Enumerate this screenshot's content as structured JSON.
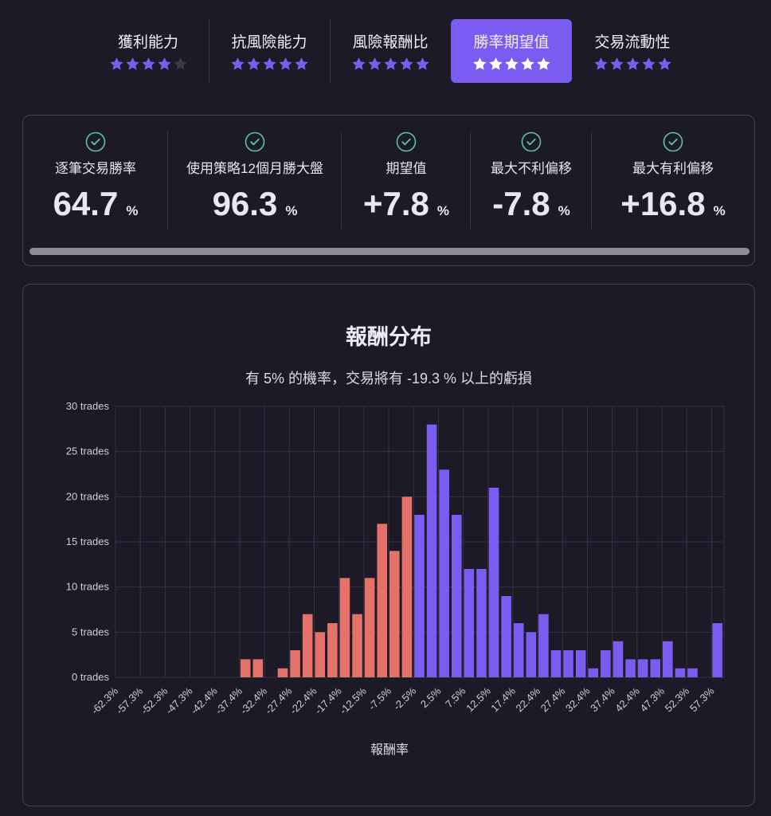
{
  "tabs": [
    {
      "label": "獲利能力",
      "stars": 4,
      "active": false
    },
    {
      "label": "抗風險能力",
      "stars": 5,
      "active": false
    },
    {
      "label": "風險報酬比",
      "stars": 5,
      "active": false
    },
    {
      "label": "勝率期望值",
      "stars": 5,
      "active": true
    },
    {
      "label": "交易流動性",
      "stars": 5,
      "active": false
    }
  ],
  "stats": [
    {
      "label": "逐筆交易勝率",
      "value": "64.7",
      "unit": "%"
    },
    {
      "label": "使用策略12個月勝大盤",
      "value": "96.3",
      "unit": "%"
    },
    {
      "label": "期望值",
      "value": "+7.8",
      "unit": "%"
    },
    {
      "label": "最大不利偏移",
      "value": "-7.8",
      "unit": "%"
    },
    {
      "label": "最大有利偏移",
      "value": "+16.8",
      "unit": "%"
    }
  ],
  "colors": {
    "accent": "#7b5cf0",
    "loss": "#e5726a",
    "check": "#59c5a8"
  },
  "chart_data": {
    "type": "bar",
    "title": "報酬分布",
    "subtitle": "有 5% 的機率，交易將有 -19.3 % 以上的虧損",
    "xlabel": "報酬率",
    "ylabel": "",
    "ylim": [
      0,
      30
    ],
    "y_ticks": [
      "0 trades",
      "5 trades",
      "10 trades",
      "15 trades",
      "20 trades",
      "25 trades",
      "30 trades"
    ],
    "x_tick_labels": [
      "-62.3%",
      "-57.3%",
      "-52.3%",
      "-47.3%",
      "-42.4%",
      "-37.4%",
      "-32.4%",
      "-27.4%",
      "-22.4%",
      "-17.4%",
      "-12.5%",
      "-7.5%",
      "-2.5%",
      "2.5%",
      "7.5%",
      "12.5%",
      "17.4%",
      "22.4%",
      "27.4%",
      "32.4%",
      "37.4%",
      "42.4%",
      "47.3%",
      "52.3%",
      "57.3%"
    ],
    "values": [
      0,
      0,
      0,
      0,
      0,
      0,
      0,
      0,
      0,
      0,
      2,
      2,
      0,
      1,
      3,
      7,
      5,
      6,
      11,
      7,
      11,
      17,
      14,
      20,
      18,
      28,
      23,
      18,
      12,
      12,
      21,
      9,
      6,
      5,
      7,
      3,
      3,
      3,
      1,
      3,
      4,
      2,
      2,
      2,
      4,
      1,
      1,
      0,
      6
    ],
    "negative_count": 24,
    "series": [
      {
        "values_color": "#7b5cf0"
      }
    ]
  }
}
